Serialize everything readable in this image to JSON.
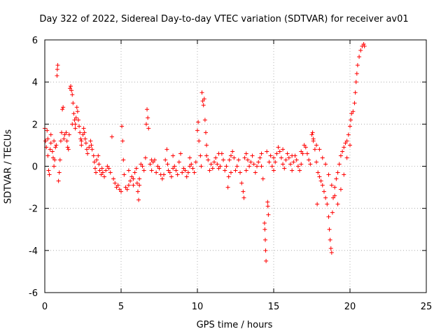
{
  "chart_data": {
    "type": "scatter",
    "title": "Day 322 of 2022, Sidereal Day-to-day VTEC variation (SDTVAR) for receiver av01",
    "xlabel": "GPS time / hours",
    "ylabel": "SDTVAR / TECUs",
    "xlim": [
      0,
      25
    ],
    "ylim": [
      -6,
      6
    ],
    "xticks": [
      0,
      5,
      10,
      15,
      20,
      25
    ],
    "yticks": [
      -6,
      -4,
      -2,
      0,
      2,
      4,
      6
    ],
    "xtick_labels": [
      "0",
      "5",
      "10",
      "15",
      "20",
      "25"
    ],
    "ytick_labels": [
      "-6",
      "-4",
      "-2",
      "0",
      "2",
      "4",
      "6"
    ],
    "grid": true,
    "marker": "+",
    "color": "#ff0000",
    "series": [
      {
        "name": "av01",
        "points": [
          [
            0.0,
            1.8
          ],
          [
            0.05,
            1.2
          ],
          [
            0.1,
            0.9
          ],
          [
            0.15,
            1.7
          ],
          [
            0.2,
            0.5
          ],
          [
            0.25,
            -0.2
          ],
          [
            0.3,
            -0.4
          ],
          [
            0.35,
            0.8
          ],
          [
            0.4,
            1.1
          ],
          [
            0.5,
            0.7
          ],
          [
            0.55,
            0.4
          ],
          [
            0.6,
            0.0
          ],
          [
            0.65,
            0.3
          ],
          [
            0.7,
            0.9
          ],
          [
            0.75,
            1.0
          ],
          [
            0.8,
            4.3
          ],
          [
            0.82,
            4.6
          ],
          [
            0.85,
            4.8
          ],
          [
            0.9,
            -0.7
          ],
          [
            0.95,
            -0.3
          ],
          [
            1.0,
            0.3
          ],
          [
            1.05,
            1.2
          ],
          [
            1.1,
            1.6
          ],
          [
            1.15,
            2.7
          ],
          [
            1.2,
            2.8
          ],
          [
            1.25,
            1.3
          ],
          [
            1.3,
            1.5
          ],
          [
            1.4,
            1.6
          ],
          [
            1.45,
            1.2
          ],
          [
            1.5,
            0.9
          ],
          [
            1.55,
            0.8
          ],
          [
            1.6,
            1.5
          ],
          [
            1.65,
            3.7
          ],
          [
            1.7,
            3.8
          ],
          [
            1.75,
            3.6
          ],
          [
            1.8,
            3.4
          ],
          [
            1.85,
            3.0
          ],
          [
            1.9,
            2.5
          ],
          [
            1.95,
            2.2
          ],
          [
            2.0,
            2.0
          ],
          [
            2.05,
            2.3
          ],
          [
            2.1,
            2.8
          ],
          [
            2.15,
            2.6
          ],
          [
            2.2,
            2.2
          ],
          [
            2.25,
            1.9
          ],
          [
            2.3,
            1.6
          ],
          [
            2.35,
            1.3
          ],
          [
            2.4,
            1.0
          ],
          [
            2.5,
            1.5
          ],
          [
            2.55,
            1.8
          ],
          [
            2.6,
            1.6
          ],
          [
            2.65,
            1.3
          ],
          [
            2.7,
            1.1
          ],
          [
            2.75,
            0.8
          ],
          [
            2.8,
            0.6
          ],
          [
            2.9,
            0.9
          ],
          [
            3.0,
            1.2
          ],
          [
            3.05,
            1.0
          ],
          [
            3.1,
            0.8
          ],
          [
            3.2,
            0.5
          ],
          [
            3.25,
            0.2
          ],
          [
            3.3,
            -0.1
          ],
          [
            3.35,
            -0.3
          ],
          [
            3.4,
            0.3
          ],
          [
            3.5,
            0.5
          ],
          [
            3.55,
            0.1
          ],
          [
            3.6,
            -0.2
          ],
          [
            3.7,
            -0.4
          ],
          [
            3.75,
            -0.1
          ],
          [
            3.8,
            -0.3
          ],
          [
            3.9,
            -0.5
          ],
          [
            4.0,
            -0.2
          ],
          [
            4.1,
            0.0
          ],
          [
            4.2,
            -0.1
          ],
          [
            4.3,
            -0.3
          ],
          [
            4.4,
            1.4
          ],
          [
            4.5,
            -0.6
          ],
          [
            4.6,
            -0.8
          ],
          [
            4.7,
            -1.0
          ],
          [
            4.8,
            -0.9
          ],
          [
            4.9,
            -1.1
          ],
          [
            5.0,
            -1.2
          ],
          [
            5.05,
            1.9
          ],
          [
            5.1,
            1.2
          ],
          [
            5.15,
            0.3
          ],
          [
            5.2,
            -0.4
          ],
          [
            5.3,
            -1.0
          ],
          [
            5.4,
            -1.1
          ],
          [
            5.5,
            -0.9
          ],
          [
            5.6,
            -0.7
          ],
          [
            5.7,
            -0.5
          ],
          [
            5.8,
            -0.6
          ],
          [
            5.9,
            -0.3
          ],
          [
            6.0,
            -0.1
          ],
          [
            6.05,
            -0.8
          ],
          [
            6.1,
            -1.2
          ],
          [
            6.15,
            -1.6
          ],
          [
            6.2,
            -0.6
          ],
          [
            6.3,
            0.1
          ],
          [
            6.4,
            0.0
          ],
          [
            6.5,
            -0.2
          ],
          [
            6.6,
            0.4
          ],
          [
            6.65,
            2.0
          ],
          [
            6.7,
            2.7
          ],
          [
            6.75,
            2.3
          ],
          [
            6.8,
            1.8
          ],
          [
            6.9,
            0.1
          ],
          [
            7.0,
            -0.2
          ],
          [
            7.1,
            0.2
          ],
          [
            7.2,
            0.3
          ],
          [
            7.3,
            -0.3
          ],
          [
            7.4,
            0.0
          ],
          [
            7.5,
            -0.1
          ],
          [
            7.6,
            -0.4
          ],
          [
            7.7,
            -0.6
          ],
          [
            7.8,
            -0.4
          ],
          [
            7.9,
            0.3
          ],
          [
            8.0,
            0.8
          ],
          [
            8.05,
            0.1
          ],
          [
            8.1,
            -0.2
          ],
          [
            8.2,
            -0.3
          ],
          [
            8.3,
            -0.5
          ],
          [
            8.4,
            -0.1
          ],
          [
            8.5,
            0.0
          ],
          [
            8.6,
            -0.2
          ],
          [
            8.7,
            -0.4
          ],
          [
            8.8,
            0.2
          ],
          [
            8.9,
            0.6
          ],
          [
            9.0,
            -0.3
          ],
          [
            9.1,
            -0.1
          ],
          [
            9.2,
            -0.2
          ],
          [
            9.3,
            -0.5
          ],
          [
            9.4,
            -0.3
          ],
          [
            9.5,
            0.0
          ],
          [
            9.6,
            0.1
          ],
          [
            9.7,
            -0.1
          ],
          [
            9.8,
            -0.3
          ],
          [
            9.9,
            0.2
          ],
          [
            10.0,
            1.7
          ],
          [
            10.05,
            2.1
          ],
          [
            10.1,
            1.2
          ],
          [
            10.2,
            0.5
          ],
          [
            10.25,
            0.0
          ],
          [
            10.3,
            3.5
          ],
          [
            10.35,
            3.1
          ],
          [
            10.4,
            2.9
          ],
          [
            10.45,
            3.2
          ],
          [
            10.5,
            2.2
          ],
          [
            10.55,
            1.6
          ],
          [
            10.6,
            1.0
          ],
          [
            10.7,
            0.3
          ],
          [
            10.8,
            -0.2
          ],
          [
            10.9,
            0.1
          ],
          [
            11.0,
            -0.1
          ],
          [
            11.1,
            0.2
          ],
          [
            11.2,
            0.4
          ],
          [
            11.3,
            0.1
          ],
          [
            11.4,
            -0.1
          ],
          [
            11.5,
            0.0
          ],
          [
            11.6,
            0.6
          ],
          [
            11.7,
            0.3
          ],
          [
            11.8,
            -0.2
          ],
          [
            11.9,
            0.0
          ],
          [
            12.0,
            -1.0
          ],
          [
            12.05,
            -0.5
          ],
          [
            12.1,
            0.3
          ],
          [
            12.2,
            0.5
          ],
          [
            12.3,
            0.7
          ],
          [
            12.4,
            0.4
          ],
          [
            12.5,
            -0.2
          ],
          [
            12.6,
            0.0
          ],
          [
            12.7,
            0.3
          ],
          [
            12.8,
            -0.3
          ],
          [
            12.9,
            -0.8
          ],
          [
            13.0,
            -1.2
          ],
          [
            13.05,
            -1.5
          ],
          [
            13.1,
            0.4
          ],
          [
            13.2,
            0.6
          ],
          [
            13.3,
            0.3
          ],
          [
            13.4,
            0.0
          ],
          [
            13.5,
            0.2
          ],
          [
            13.6,
            0.5
          ],
          [
            13.7,
            0.1
          ],
          [
            13.8,
            -0.3
          ],
          [
            13.9,
            0.0
          ],
          [
            14.0,
            0.2
          ],
          [
            14.1,
            0.4
          ],
          [
            14.2,
            0.0
          ],
          [
            14.3,
            -0.6
          ],
          [
            14.4,
            -2.7
          ],
          [
            14.42,
            -3.0
          ],
          [
            14.45,
            -3.5
          ],
          [
            14.47,
            -4.0
          ],
          [
            14.5,
            -4.5
          ],
          [
            14.55,
            0.7
          ],
          [
            14.6,
            -1.7
          ],
          [
            14.62,
            -1.9
          ],
          [
            14.65,
            -2.3
          ],
          [
            14.7,
            0.2
          ],
          [
            14.8,
            0.5
          ],
          [
            14.9,
            0.0
          ],
          [
            15.0,
            -0.2
          ],
          [
            15.1,
            0.2
          ],
          [
            15.2,
            0.6
          ],
          [
            15.3,
            0.9
          ],
          [
            15.4,
            0.7
          ],
          [
            15.5,
            0.4
          ],
          [
            15.6,
            0.1
          ],
          [
            15.7,
            -0.1
          ],
          [
            15.8,
            0.3
          ],
          [
            15.9,
            0.6
          ],
          [
            16.0,
            0.4
          ],
          [
            16.1,
            0.1
          ],
          [
            16.2,
            -0.2
          ],
          [
            16.3,
            0.2
          ],
          [
            16.4,
            0.5
          ],
          [
            16.5,
            0.3
          ],
          [
            16.6,
            0.0
          ],
          [
            16.7,
            -0.2
          ],
          [
            16.8,
            0.1
          ],
          [
            16.9,
            0.6
          ],
          [
            17.0,
            1.0
          ],
          [
            17.1,
            0.9
          ],
          [
            17.2,
            0.6
          ],
          [
            17.3,
            0.3
          ],
          [
            17.4,
            0.1
          ],
          [
            17.5,
            1.5
          ],
          [
            17.55,
            1.6
          ],
          [
            17.6,
            1.3
          ],
          [
            17.7,
            0.8
          ],
          [
            17.8,
            0.2
          ],
          [
            17.85,
            -1.8
          ],
          [
            17.9,
            -0.3
          ],
          [
            18.0,
            -0.5
          ],
          [
            18.1,
            -0.7
          ],
          [
            18.2,
            -0.9
          ],
          [
            18.3,
            -1.2
          ],
          [
            18.4,
            -1.5
          ],
          [
            18.5,
            -1.8
          ],
          [
            18.6,
            -2.4
          ],
          [
            18.65,
            -3.0
          ],
          [
            18.7,
            -3.5
          ],
          [
            18.75,
            -3.9
          ],
          [
            18.8,
            -4.1
          ],
          [
            18.85,
            -2.2
          ],
          [
            18.9,
            -1.5
          ],
          [
            19.0,
            -1.0
          ],
          [
            19.1,
            -0.6
          ],
          [
            19.2,
            -0.3
          ],
          [
            19.3,
            0.1
          ],
          [
            19.4,
            0.5
          ],
          [
            19.5,
            0.7
          ],
          [
            19.6,
            0.9
          ],
          [
            19.7,
            1.1
          ],
          [
            19.8,
            1.2
          ],
          [
            19.9,
            1.5
          ],
          [
            20.0,
            1.9
          ],
          [
            20.05,
            2.2
          ],
          [
            20.1,
            2.5
          ],
          [
            20.2,
            2.6
          ],
          [
            20.3,
            3.0
          ],
          [
            20.35,
            3.5
          ],
          [
            20.4,
            4.0
          ],
          [
            20.45,
            4.4
          ],
          [
            20.5,
            4.8
          ],
          [
            20.6,
            5.2
          ],
          [
            20.7,
            5.5
          ],
          [
            20.8,
            5.7
          ],
          [
            20.9,
            5.8
          ],
          [
            20.95,
            5.7
          ],
          [
            17.6,
            1.2
          ],
          [
            17.8,
            1.0
          ],
          [
            18.0,
            0.8
          ],
          [
            18.2,
            0.4
          ],
          [
            18.4,
            0.1
          ],
          [
            18.6,
            -0.4
          ],
          [
            18.8,
            -0.9
          ],
          [
            19.0,
            -1.4
          ],
          [
            19.2,
            -1.8
          ],
          [
            19.4,
            -1.1
          ],
          [
            19.6,
            -0.4
          ],
          [
            19.8,
            0.4
          ],
          [
            20.0,
            1.0
          ],
          [
            0.2,
            1.3
          ],
          [
            0.4,
            1.5
          ],
          [
            0.6,
            1.2
          ],
          [
            1.8,
            2.0
          ],
          [
            2.0,
            1.8
          ],
          [
            2.4,
            1.2
          ],
          [
            5.5,
            -0.2
          ],
          [
            5.8,
            -0.9
          ],
          [
            6.2,
            -0.9
          ],
          [
            7.0,
            0.3
          ],
          [
            8.4,
            0.5
          ],
          [
            9.5,
            0.4
          ],
          [
            10.6,
            0.5
          ],
          [
            11.4,
            0.6
          ],
          [
            12.2,
            -0.3
          ],
          [
            13.2,
            -0.2
          ],
          [
            14.2,
            0.6
          ],
          [
            15.0,
            0.4
          ],
          [
            15.6,
            0.8
          ],
          [
            16.2,
            0.5
          ],
          [
            16.8,
            0.7
          ]
        ]
      }
    ]
  }
}
